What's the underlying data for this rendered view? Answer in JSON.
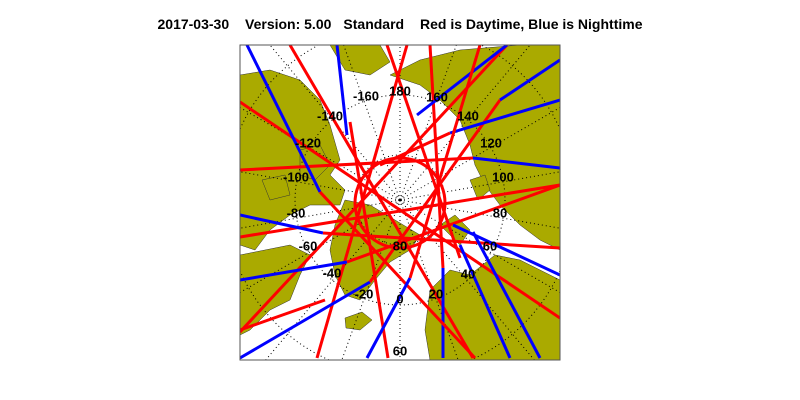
{
  "header": {
    "date": "2017-03-30",
    "version": "Version: 5.00",
    "mode": "Standard",
    "legend": "Red is Daytime, Blue is Nighttime"
  },
  "map": {
    "projection": "north polar stereographic",
    "colors": {
      "land": "#aaaa00",
      "ocean": "#ffffff",
      "daytime": "#ff0000",
      "nighttime": "#0000ff",
      "grid": "#000000"
    },
    "longitude_labels": [
      "-160",
      "180",
      "160",
      "140",
      "120",
      "100",
      "80",
      "60",
      "40",
      "20",
      "0",
      "-20",
      "-40",
      "-60",
      "-80",
      "-100",
      "-120",
      "-140"
    ],
    "latitude_labels": [
      "80",
      "60"
    ]
  }
}
